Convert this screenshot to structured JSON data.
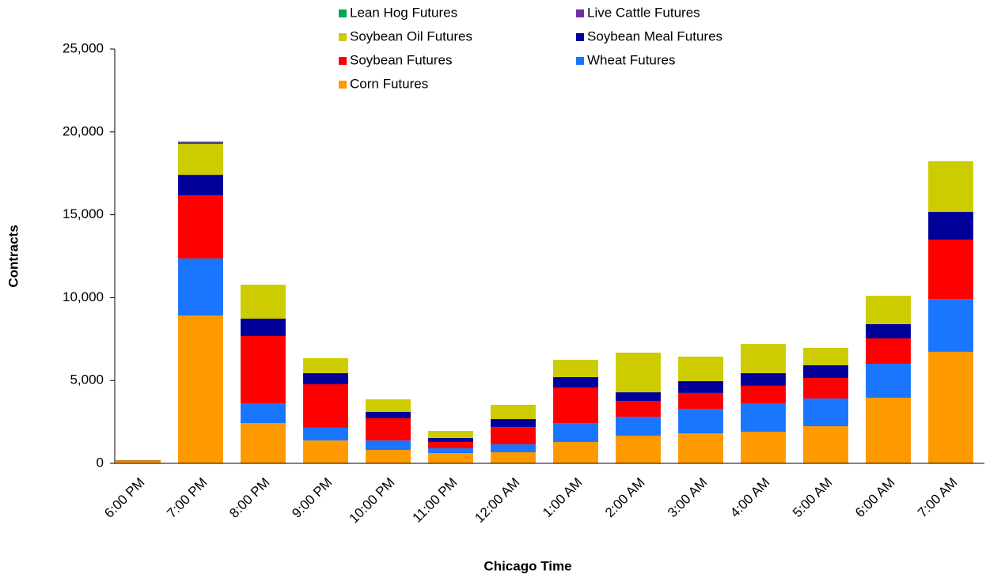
{
  "chart_data": {
    "type": "stacked_bar",
    "x_label": "Chicago Time",
    "y_label": "Contracts",
    "categories": [
      "6:00 PM",
      "7:00 PM",
      "8:00 PM",
      "9:00 PM",
      "10:00 PM",
      "11:00 PM",
      "12:00 AM",
      "1:00 AM",
      "2:00 AM",
      "3:00 AM",
      "4:00 AM",
      "5:00 AM",
      "6:00 AM",
      "7:00 AM"
    ],
    "series": [
      {
        "name": "Corn Futures",
        "color": "#ff9900",
        "values": [
          120,
          8920,
          2430,
          1380,
          810,
          620,
          670,
          1290,
          1670,
          1810,
          1910,
          2240,
          3960,
          6730
        ]
      },
      {
        "name": "Wheat Futures",
        "color": "#1a75ff",
        "values": [
          20,
          3440,
          1200,
          770,
          570,
          290,
          480,
          1140,
          1140,
          1480,
          1720,
          1670,
          2050,
          3190
        ]
      },
      {
        "name": "Soybean Futures",
        "color": "#ff0000",
        "values": [
          20,
          3810,
          4050,
          2620,
          1340,
          380,
          1040,
          2150,
          960,
          960,
          1050,
          1240,
          1530,
          3580
        ]
      },
      {
        "name": "Soybean Meal Futures",
        "color": "#000099",
        "values": [
          10,
          1240,
          1050,
          670,
          380,
          240,
          480,
          620,
          520,
          710,
          760,
          770,
          860,
          1670
        ]
      },
      {
        "name": "Soybean Oil Futures",
        "color": "#cccc00",
        "values": [
          30,
          1860,
          2050,
          910,
          760,
          430,
          860,
          1050,
          2390,
          1480,
          1760,
          1050,
          1710,
          3060
        ]
      },
      {
        "name": "Live Cattle Futures",
        "color": "#7030a0",
        "values": [
          0,
          100,
          0,
          0,
          0,
          0,
          0,
          0,
          0,
          0,
          0,
          0,
          0,
          0
        ]
      },
      {
        "name": "Lean Hog Futures",
        "color": "#00a651",
        "values": [
          0,
          50,
          0,
          0,
          0,
          0,
          0,
          0,
          0,
          0,
          0,
          0,
          0,
          0
        ]
      }
    ],
    "ylim": [
      0,
      25000
    ],
    "yticks": [
      0,
      {
        "value": 5000,
        "label": "5,000"
      },
      {
        "value": 10000,
        "label": "10,000"
      },
      {
        "value": 15000,
        "label": "15,000"
      },
      {
        "value": 20000,
        "label": "20,000"
      },
      {
        "value": 25000,
        "label": "25,000"
      }
    ],
    "grid": false,
    "legend": "top"
  }
}
